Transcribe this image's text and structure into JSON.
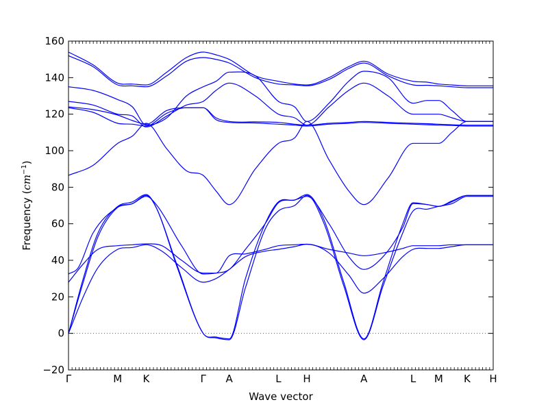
{
  "chart_data": {
    "type": "line",
    "title": "",
    "xlabel": "Wave vector",
    "ylabel": "Frequency (",
    "ylabel_math": "cm",
    "ylabel_sup": "−1",
    "ylabel_close": ")",
    "ylim": [
      -20,
      160
    ],
    "grid": false,
    "legend": "none",
    "colors": {
      "bands": "#0000ff",
      "zero_line": "#555555"
    },
    "y_ticks": [
      {
        "value": -20,
        "label": "−20"
      },
      {
        "value": 0,
        "label": "0"
      },
      {
        "value": 20,
        "label": "20"
      },
      {
        "value": 40,
        "label": "40"
      },
      {
        "value": 60,
        "label": "60"
      },
      {
        "value": 80,
        "label": "80"
      },
      {
        "value": 100,
        "label": "100"
      },
      {
        "value": 120,
        "label": "120"
      },
      {
        "value": 140,
        "label": "140"
      },
      {
        "value": 160,
        "label": "160"
      }
    ],
    "k_points": [
      {
        "label": "Γ",
        "pos": 0.0
      },
      {
        "label": "M",
        "pos": 1.0
      },
      {
        "label": "K",
        "pos": 1.58
      },
      {
        "label": "Γ",
        "pos": 2.74
      },
      {
        "label": "A",
        "pos": 3.27
      },
      {
        "label": "L",
        "pos": 4.27
      },
      {
        "label": "H",
        "pos": 4.85
      },
      {
        "label": "A",
        "pos": 6.01
      },
      {
        "label": "L",
        "pos": 7.01
      },
      {
        "label": "M",
        "pos": 7.53
      },
      {
        "label": "K",
        "pos": 8.11
      },
      {
        "label": "H",
        "pos": 8.64
      }
    ],
    "x_range": [
      0,
      8.64
    ],
    "zero_line": 0,
    "series": [
      {
        "x": [
          0,
          0.5,
          1.0,
          1.3,
          1.58,
          2.0,
          2.4,
          2.74,
          3.0,
          3.27,
          3.8,
          4.27,
          4.6,
          4.85,
          5.3,
          5.7,
          6.01,
          6.5,
          7.01,
          7.3,
          7.53,
          7.8,
          8.11,
          8.3,
          8.64
        ],
        "y": [
          154,
          147,
          137,
          136.5,
          136,
          143,
          151,
          154,
          152.5,
          150,
          141,
          138,
          136.5,
          136,
          140,
          146,
          149,
          142,
          138,
          137.5,
          136.5,
          136,
          135.5,
          135.5,
          135.5
        ]
      },
      {
        "x": [
          0,
          0.5,
          1.0,
          1.3,
          1.58,
          2.0,
          2.4,
          2.74,
          3.0,
          3.27,
          3.8,
          4.27,
          4.6,
          4.85,
          5.3,
          5.7,
          6.01,
          6.5,
          7.01,
          7.3,
          7.53,
          7.8,
          8.11,
          8.3,
          8.64
        ],
        "y": [
          152,
          146,
          136,
          135.5,
          135,
          141,
          149,
          151,
          150,
          148,
          140,
          136.5,
          136,
          135.5,
          139,
          145,
          148,
          141,
          136,
          135.8,
          135.5,
          135,
          134.5,
          134.5,
          134.5
        ]
      },
      {
        "x": [
          0,
          0.5,
          1.0,
          1.3,
          1.58,
          2.0,
          2.4,
          2.74,
          3.0,
          3.27,
          3.8,
          4.27,
          4.6,
          4.85,
          5.3,
          5.7,
          6.01,
          6.5,
          7.01,
          7.3,
          7.53,
          7.8,
          8.11,
          8.3,
          8.64
        ],
        "y": [
          135,
          133,
          128,
          124,
          114,
          118,
          130,
          135,
          138,
          143,
          141,
          127,
          124,
          116,
          126,
          138,
          143.5,
          140,
          126,
          127.5,
          127.5,
          122,
          116,
          116,
          116
        ]
      },
      {
        "x": [
          0,
          0.5,
          1.0,
          1.3,
          1.58,
          2.0,
          2.4,
          2.74,
          3.0,
          3.27,
          3.8,
          4.27,
          4.6,
          4.85,
          5.3,
          5.7,
          6.01,
          6.5,
          7.01,
          7.3,
          7.53,
          7.8,
          8.11,
          8.3,
          8.64
        ],
        "y": [
          127,
          125,
          120,
          119,
          113,
          119,
          125,
          127,
          133,
          137,
          130,
          120,
          118,
          114,
          124,
          133,
          137,
          130,
          120,
          120,
          120,
          118,
          116,
          116,
          116
        ]
      },
      {
        "x": [
          0,
          0.5,
          1.0,
          1.3,
          1.58,
          2.0,
          2.4,
          2.74,
          3.0,
          3.27,
          3.8,
          4.27,
          4.6,
          4.85,
          5.3,
          5.7,
          6.01,
          6.5,
          7.01,
          7.3,
          7.53,
          7.8,
          8.11,
          8.3,
          8.64
        ],
        "y": [
          124,
          122.5,
          119.5,
          116.5,
          114.5,
          122,
          123.5,
          123.5,
          118,
          116,
          115.8,
          115.5,
          114.5,
          114,
          115,
          115.5,
          116,
          115.5,
          115,
          114.8,
          114.5,
          114.2,
          114,
          114,
          114
        ]
      },
      {
        "x": [
          0,
          0.5,
          1.0,
          1.3,
          1.58,
          2.0,
          2.4,
          2.74,
          3.0,
          3.27,
          3.8,
          4.27,
          4.6,
          4.85,
          5.3,
          5.7,
          6.01,
          6.5,
          7.01,
          7.3,
          7.53,
          7.8,
          8.11,
          8.3,
          8.64
        ],
        "y": [
          123.5,
          121,
          115,
          114.5,
          113.5,
          120.5,
          123.5,
          123.5,
          117,
          115.5,
          115.2,
          114.5,
          114,
          113.5,
          114.5,
          115,
          115.5,
          115,
          114.5,
          114.2,
          114,
          113.8,
          113.5,
          113.5,
          113.5
        ]
      },
      {
        "x": [
          0,
          0.5,
          1.0,
          1.3,
          1.58,
          2.0,
          2.4,
          2.74,
          3.0,
          3.27,
          3.8,
          4.27,
          4.6,
          4.85,
          5.3,
          5.7,
          6.01,
          6.5,
          7.01,
          7.3,
          7.53,
          7.8,
          8.11,
          8.3,
          8.64
        ],
        "y": [
          86.5,
          92,
          104,
          108,
          115,
          101,
          89,
          86.5,
          78,
          70.5,
          90,
          104,
          107,
          116,
          95,
          78,
          70.5,
          85,
          104,
          104,
          104,
          110,
          116,
          116,
          116
        ]
      },
      {
        "x": [
          0,
          0.3,
          0.6,
          1.0,
          1.3,
          1.58,
          1.8,
          2.2,
          2.74,
          3.0,
          3.27,
          3.6,
          4.0,
          4.27,
          4.6,
          4.85,
          5.2,
          5.6,
          6.01,
          6.4,
          6.8,
          7.01,
          7.3,
          7.53,
          7.8,
          8.11,
          8.3,
          8.64
        ],
        "y": [
          0,
          30,
          55,
          69.5,
          72,
          76,
          68,
          38,
          0,
          -2,
          -3,
          30,
          60,
          72,
          73,
          76,
          62,
          28,
          -3,
          28,
          60,
          71.5,
          70.5,
          69.5,
          72,
          75.5,
          75.5,
          75.5
        ]
      },
      {
        "x": [
          0,
          0.3,
          0.6,
          1.0,
          1.3,
          1.58,
          1.8,
          2.2,
          2.74,
          3.0,
          3.27,
          3.6,
          4.0,
          4.27,
          4.6,
          4.85,
          5.2,
          5.6,
          6.01,
          6.4,
          6.8,
          7.01,
          7.3,
          7.53,
          7.8,
          8.11,
          8.3,
          8.64
        ],
        "y": [
          0,
          28,
          53,
          69,
          71,
          75.5,
          68,
          37,
          0,
          -2.5,
          -3.5,
          25,
          57,
          67,
          70,
          75.5,
          60,
          26,
          -3.5,
          26,
          55,
          67,
          68,
          69.5,
          71,
          75,
          75,
          75
        ]
      },
      {
        "x": [
          0,
          0.2,
          0.5,
          1.0,
          1.3,
          1.58,
          1.8,
          2.3,
          2.74,
          3.0,
          3.27,
          3.6,
          4.0,
          4.27,
          4.6,
          4.85,
          5.3,
          5.7,
          6.01,
          6.4,
          6.8,
          7.01,
          7.3,
          7.53,
          7.8,
          8.11,
          8.3,
          8.64
        ],
        "y": [
          32.5,
          36,
          55,
          69,
          71,
          75,
          70,
          48,
          32.5,
          33,
          35,
          46,
          60,
          71.5,
          73,
          75,
          60,
          42,
          35,
          42,
          58,
          71,
          70.5,
          69.5,
          72.5,
          75.5,
          75.5,
          75.5
        ]
      },
      {
        "x": [
          0,
          0.3,
          0.6,
          1.0,
          1.3,
          1.58,
          1.9,
          2.3,
          2.74,
          3.0,
          3.27,
          3.6,
          4.0,
          4.27,
          4.6,
          4.85,
          5.3,
          5.7,
          6.01,
          6.4,
          6.8,
          7.01,
          7.3,
          7.53,
          7.8,
          8.11,
          8.3,
          8.64
        ],
        "y": [
          28,
          38,
          46,
          48,
          48.5,
          49,
          48,
          40,
          33,
          33,
          42.5,
          43.5,
          46,
          48,
          48.5,
          48.8,
          46,
          44,
          42.5,
          44,
          46.5,
          48,
          48,
          48,
          48.5,
          48.5,
          48.5,
          48.5
        ]
      },
      {
        "x": [
          0,
          0.3,
          0.6,
          1.0,
          1.3,
          1.58,
          1.9,
          2.3,
          2.74,
          3.0,
          3.27,
          3.6,
          4.0,
          4.27,
          4.6,
          4.85,
          5.3,
          5.7,
          6.01,
          6.4,
          6.8,
          7.01,
          7.3,
          7.53,
          7.8,
          8.11,
          8.3,
          8.64
        ],
        "y": [
          0,
          20,
          36,
          46,
          47,
          48.5,
          45,
          36,
          28,
          30,
          35,
          42,
          45,
          46,
          47.5,
          48.8,
          44,
          32,
          22,
          30,
          42,
          46,
          46.5,
          46.5,
          47.5,
          48.5,
          48.5,
          48.5
        ]
      }
    ]
  }
}
